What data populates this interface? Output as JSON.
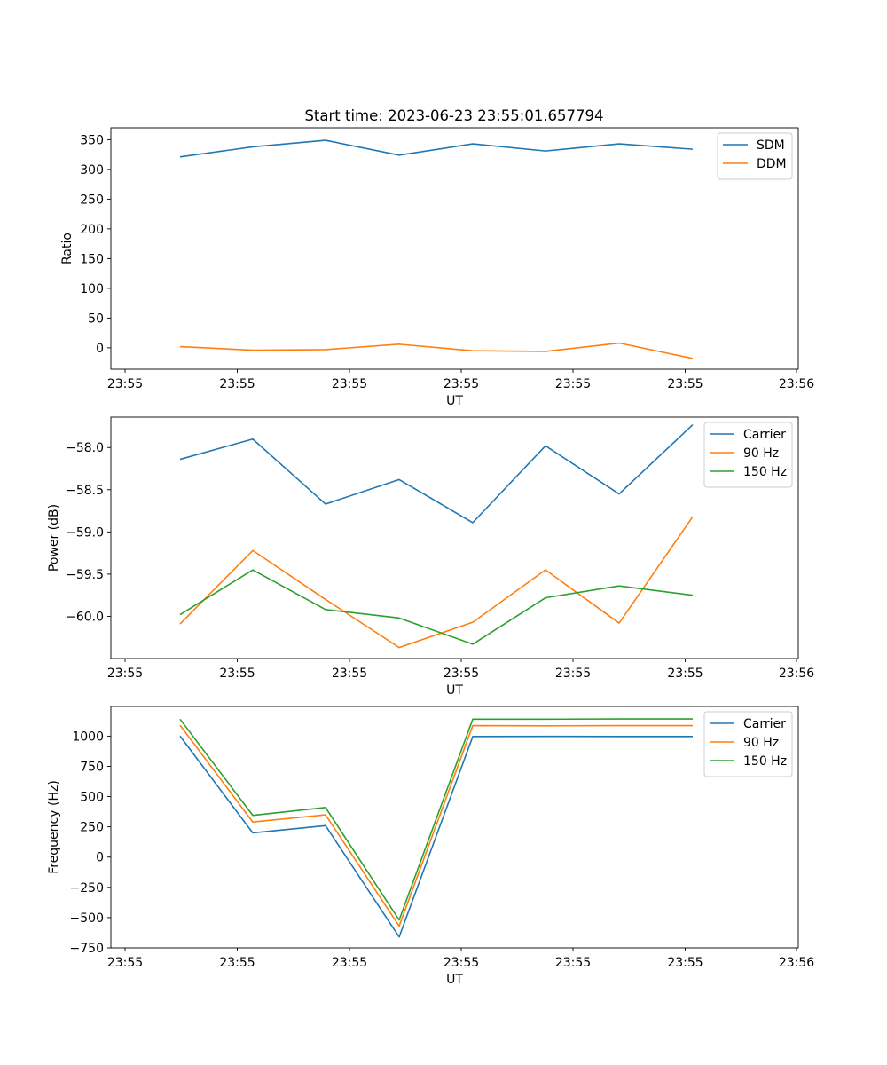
{
  "figure": {
    "title": "Start time: 2023-06-23 23:55:01.657794"
  },
  "chart_data": [
    {
      "type": "line",
      "xlabel": "UT",
      "ylabel": "Ratio",
      "x_tick_labels": [
        "23:55",
        "23:55",
        "23:55",
        "23:55",
        "23:55",
        "23:55",
        "23:56"
      ],
      "y_ticks": [
        0,
        50,
        100,
        150,
        200,
        250,
        300,
        350
      ],
      "ylim": [
        -36,
        370
      ],
      "legend_position": "top-right",
      "grid": false,
      "series": [
        {
          "name": "SDM",
          "color": "#1f77b4",
          "values": [
            321,
            338,
            349,
            324,
            343,
            331,
            343,
            334
          ]
        },
        {
          "name": "DDM",
          "color": "#ff7f0e",
          "values": [
            2,
            -4,
            -3,
            6,
            -5,
            -6,
            8,
            -18
          ]
        }
      ]
    },
    {
      "type": "line",
      "xlabel": "UT",
      "ylabel": "Power (dB)",
      "x_tick_labels": [
        "23:55",
        "23:55",
        "23:55",
        "23:55",
        "23:55",
        "23:55",
        "23:56"
      ],
      "y_ticks": [
        -60.0,
        -59.5,
        -59.0,
        -58.5,
        -58.0
      ],
      "y_tick_labels": [
        "−60.0",
        "−59.5",
        "−59.0",
        "−58.5",
        "−58.0"
      ],
      "ylim": [
        -60.5,
        -57.64
      ],
      "legend_position": "top-right",
      "grid": false,
      "series": [
        {
          "name": "Carrier",
          "color": "#1f77b4",
          "values": [
            -58.14,
            -57.9,
            -58.67,
            -58.38,
            -58.89,
            -57.98,
            -58.55,
            -57.73
          ]
        },
        {
          "name": "90 Hz",
          "color": "#ff7f0e",
          "values": [
            -60.09,
            -59.22,
            -59.8,
            -60.37,
            -60.07,
            -59.45,
            -60.08,
            -58.82
          ]
        },
        {
          "name": "150 Hz",
          "color": "#2ca02c",
          "values": [
            -59.98,
            -59.45,
            -59.92,
            -60.02,
            -60.33,
            -59.78,
            -59.64,
            -59.75
          ]
        }
      ]
    },
    {
      "type": "line",
      "xlabel": "UT",
      "ylabel": "Frequency (Hz)",
      "x_tick_labels": [
        "23:55",
        "23:55",
        "23:55",
        "23:55",
        "23:55",
        "23:55",
        "23:56"
      ],
      "y_ticks": [
        -750,
        -500,
        -250,
        0,
        250,
        500,
        750,
        1000
      ],
      "y_tick_labels": [
        "−750",
        "−500",
        "−250",
        "0",
        "250",
        "500",
        "750",
        "1000"
      ],
      "ylim": [
        -750,
        1245
      ],
      "legend_position": "top-right",
      "grid": false,
      "series": [
        {
          "name": "Carrier",
          "color": "#1f77b4",
          "values": [
            1000,
            200,
            260,
            -660,
            997,
            998,
            997,
            997
          ]
        },
        {
          "name": "90 Hz",
          "color": "#ff7f0e",
          "values": [
            1090,
            290,
            350,
            -570,
            1087,
            1085,
            1087,
            1087
          ]
        },
        {
          "name": "150 Hz",
          "color": "#2ca02c",
          "values": [
            1140,
            345,
            410,
            -520,
            1140,
            1140,
            1142,
            1142
          ]
        }
      ]
    }
  ]
}
